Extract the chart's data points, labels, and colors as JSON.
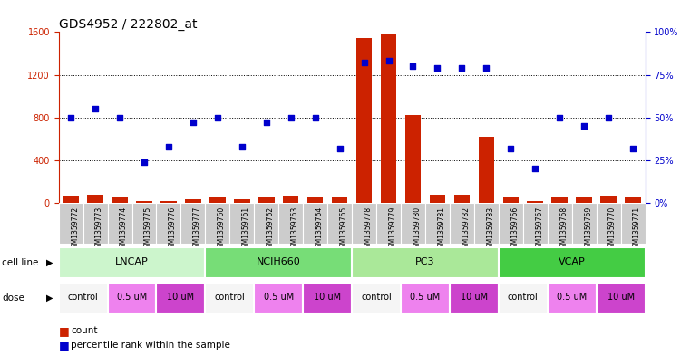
{
  "title": "GDS4952 / 222802_at",
  "samples": [
    "GSM1359772",
    "GSM1359773",
    "GSM1359774",
    "GSM1359775",
    "GSM1359776",
    "GSM1359777",
    "GSM1359760",
    "GSM1359761",
    "GSM1359762",
    "GSM1359763",
    "GSM1359764",
    "GSM1359765",
    "GSM1359778",
    "GSM1359779",
    "GSM1359780",
    "GSM1359781",
    "GSM1359782",
    "GSM1359783",
    "GSM1359766",
    "GSM1359767",
    "GSM1359768",
    "GSM1359769",
    "GSM1359770",
    "GSM1359771"
  ],
  "counts": [
    65,
    80,
    60,
    20,
    18,
    35,
    50,
    30,
    55,
    65,
    55,
    50,
    1540,
    1590,
    820,
    75,
    75,
    620,
    50,
    18,
    55,
    55,
    65,
    55
  ],
  "percentile_ranks": [
    50,
    55,
    50,
    24,
    33,
    47,
    50,
    33,
    47,
    50,
    50,
    32,
    82,
    83,
    80,
    79,
    79,
    79,
    32,
    20,
    50,
    45,
    50,
    32
  ],
  "cell_lines": [
    {
      "name": "LNCAP",
      "start": 0,
      "end": 6,
      "color": "#ccf5cc"
    },
    {
      "name": "NCIH660",
      "start": 6,
      "end": 12,
      "color": "#77dd77"
    },
    {
      "name": "PC3",
      "start": 12,
      "end": 18,
      "color": "#aae899"
    },
    {
      "name": "VCAP",
      "start": 18,
      "end": 24,
      "color": "#44cc44"
    }
  ],
  "doses": [
    {
      "label": "control",
      "start": 0,
      "end": 2,
      "color": "#f5f5f5"
    },
    {
      "label": "0.5 uM",
      "start": 2,
      "end": 4,
      "color": "#ee82ee"
    },
    {
      "label": "10 uM",
      "start": 4,
      "end": 6,
      "color": "#cc44cc"
    },
    {
      "label": "control",
      "start": 6,
      "end": 8,
      "color": "#f5f5f5"
    },
    {
      "label": "0.5 uM",
      "start": 8,
      "end": 10,
      "color": "#ee82ee"
    },
    {
      "label": "10 uM",
      "start": 10,
      "end": 12,
      "color": "#cc44cc"
    },
    {
      "label": "control",
      "start": 12,
      "end": 14,
      "color": "#f5f5f5"
    },
    {
      "label": "0.5 uM",
      "start": 14,
      "end": 16,
      "color": "#ee82ee"
    },
    {
      "label": "10 uM",
      "start": 16,
      "end": 18,
      "color": "#cc44cc"
    },
    {
      "label": "control",
      "start": 18,
      "end": 20,
      "color": "#f5f5f5"
    },
    {
      "label": "0.5 uM",
      "start": 20,
      "end": 22,
      "color": "#ee82ee"
    },
    {
      "label": "10 uM",
      "start": 22,
      "end": 24,
      "color": "#cc44cc"
    }
  ],
  "ylim_left": [
    0,
    1600
  ],
  "ylim_right": [
    0,
    100
  ],
  "yticks_left": [
    0,
    400,
    800,
    1200,
    1600
  ],
  "yticks_right": [
    0,
    25,
    50,
    75,
    100
  ],
  "bar_color": "#cc2200",
  "dot_color": "#0000cc",
  "bg_color": "#ffffff",
  "sample_bg_color": "#cccccc",
  "title_fontsize": 10,
  "tick_fontsize": 7,
  "sample_fontsize": 5.5,
  "annotation_fontsize": 8,
  "legend_fontsize": 7.5
}
